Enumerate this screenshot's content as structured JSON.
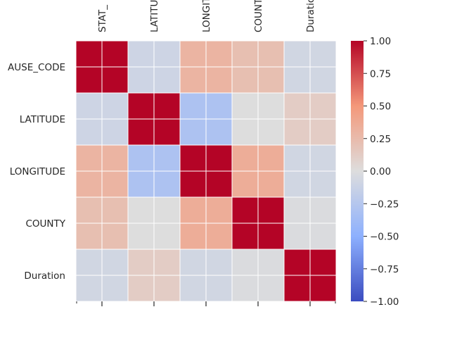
{
  "chart_data": {
    "type": "heatmap",
    "row_labels": [
      "STAT_CAUSE_CODE",
      "LATITUDE",
      "LONGITUDE",
      "COUNTY",
      "Duration"
    ],
    "col_labels": [
      "STAT_CAUSE_CODE",
      "LATITUDE",
      "LONGITUDE",
      "COUNTY",
      "Duration"
    ],
    "row_labels_visible": [
      "AUSE_CODE",
      "LATITUDE",
      "LONGITUDE",
      "COUNTY",
      "Duration"
    ],
    "col_labels_visible": [
      "STAT_",
      "LATITU",
      "LONGIT",
      "COUNT",
      "Duratio"
    ],
    "values": [
      [
        1.0,
        -0.1,
        0.3,
        0.22,
        -0.08
      ],
      [
        -0.1,
        1.0,
        -0.3,
        0.0,
        0.12
      ],
      [
        0.3,
        -0.3,
        1.0,
        0.35,
        -0.08
      ],
      [
        0.22,
        0.0,
        0.35,
        1.0,
        -0.02
      ],
      [
        -0.08,
        0.12,
        -0.08,
        -0.02,
        1.0
      ]
    ],
    "colormap": "coolwarm",
    "vmin": -1.0,
    "vmax": 1.0,
    "colorbar_ticks": [
      "1.00",
      "0.75",
      "0.50",
      "0.25",
      "0.00",
      "−0.25",
      "−0.50",
      "−0.75",
      "−1.00"
    ],
    "colorbar_values": [
      1.0,
      0.75,
      0.5,
      0.25,
      0.0,
      -0.25,
      -0.5,
      -0.75,
      -1.0
    ],
    "grid": true,
    "legend": "colorbar-right"
  }
}
